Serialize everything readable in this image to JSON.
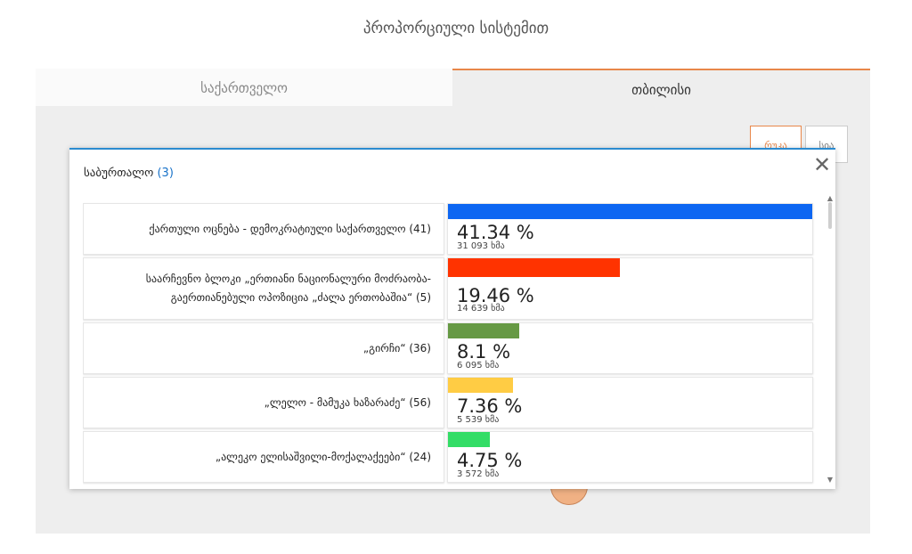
{
  "page": {
    "title": "პროპორციული სისტემით"
  },
  "tabs": [
    {
      "label": "საქართველო",
      "active": false
    },
    {
      "label": "თბილისი",
      "active": true
    }
  ],
  "view_buttons": {
    "map_label": "რუკა",
    "list_label": "სია"
  },
  "modal": {
    "title": "საბურთალო",
    "count": "(3)",
    "close_icon": "close-icon",
    "results": [
      {
        "name": "ქართული ოცნება - დემოკრატიული საქართველო (41)",
        "percent_label": "41.34 %",
        "percent": 41.34,
        "votes_label": "31 093 ხმა",
        "color": "#0d66f2"
      },
      {
        "name": "საარჩევნო ბლოკი „ერთიანი ნაციონალური მოძრაობა-გაერთიანებული ოპოზიცია „ძალა ერთობაშია“ (5)",
        "percent_label": "19.46 %",
        "percent": 19.46,
        "votes_label": "14 639 ხმა",
        "color": "#ff3300"
      },
      {
        "name": "„გირჩი“ (36)",
        "percent_label": "8.1 %",
        "percent": 8.1,
        "votes_label": "6 095 ხმა",
        "color": "#669944"
      },
      {
        "name": "„ლელო - მამუკა ხაზარაძე“ (56)",
        "percent_label": "7.36 %",
        "percent": 7.36,
        "votes_label": "5 539 ხმა",
        "color": "#ffcc44"
      },
      {
        "name": "„ალეკო ელისაშვილი-მოქალაქეები“ (24)",
        "percent_label": "4.75 %",
        "percent": 4.75,
        "votes_label": "3 572 ხმა",
        "color": "#33dd66"
      }
    ]
  },
  "colors": {
    "accent": "#e8874a",
    "modal_border": "#2b8bd0",
    "count": "#1a73c9"
  }
}
